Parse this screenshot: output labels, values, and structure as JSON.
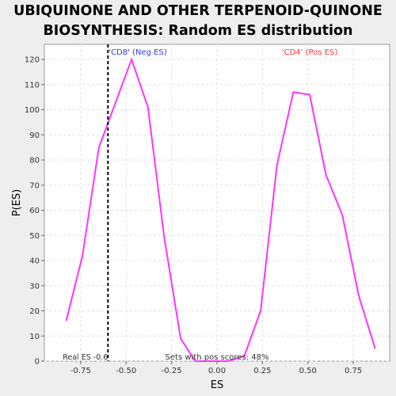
{
  "chart_data": {
    "type": "line",
    "title_lines": [
      "UBIQUINONE AND OTHER TERPENOID-QUINONE",
      "BIOSYNTHESIS: Random ES distribution"
    ],
    "xlabel": "ES",
    "ylabel": "P(ES)",
    "xlim": [
      -0.95,
      0.95
    ],
    "ylim": [
      0,
      126
    ],
    "x_ticks": [
      -0.75,
      -0.5,
      -0.25,
      0.0,
      0.25,
      0.5,
      0.75
    ],
    "x_tick_labels": [
      "-0.75",
      "-0.50",
      "-0.25",
      "0.00",
      "0.25",
      "0.50",
      "0.75"
    ],
    "y_ticks": [
      0,
      10,
      20,
      30,
      40,
      50,
      60,
      70,
      80,
      90,
      100,
      110,
      120
    ],
    "y_tick_labels": [
      "0",
      "10",
      "20",
      "30",
      "40",
      "50",
      "60",
      "70",
      "80",
      "90",
      "100",
      "110",
      "120"
    ],
    "grid": true,
    "series": [
      {
        "color": "#ff33ff",
        "x": [
          -0.83,
          -0.74,
          -0.65,
          -0.47,
          -0.38,
          -0.29,
          -0.2,
          -0.12,
          -0.03,
          0.06,
          0.15,
          0.24,
          0.33,
          0.42,
          0.51,
          0.6,
          0.69,
          0.78,
          0.87
        ],
        "y": [
          16,
          42,
          85,
          120,
          101,
          49,
          9,
          0,
          0,
          0,
          2,
          20,
          78,
          107,
          106,
          74,
          58,
          26,
          5
        ]
      }
    ],
    "real_es": {
      "value": -0.6,
      "label": "Real ES -0.6",
      "line_color": "#000000"
    },
    "annotations": {
      "neg_label": "'CD8' (Neg ES)",
      "neg_color": "#3333ff",
      "pos_label": "'CD4' (Pos ES)",
      "pos_color": "#ff3333",
      "sets_pos_scores": "Sets with pos scores: 48%"
    }
  }
}
